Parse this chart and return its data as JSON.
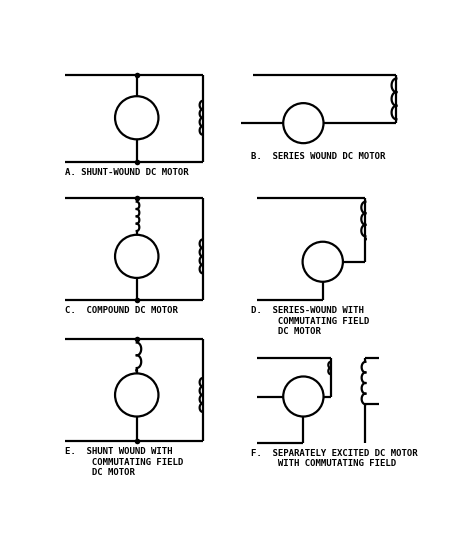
{
  "bg_color": "#ffffff",
  "line_color": "#1a1a1a",
  "lw": 1.6,
  "dot_size": 4,
  "labels": {
    "A": "A. SHUNT-WOUND DC MOTOR",
    "B": "B.  SERIES WOUND DC MOTOR",
    "C": "C.  COMPOUND DC MOTOR",
    "D": "D.  SERIES-WOUND WITH\n     COMMUTATING FIELD\n     DC MOTOR",
    "E": "E.  SHUNT WOUND WITH\n     COMMUTATING FIELD\n     DC MOTOR",
    "F": "F.  SEPARATELY EXCITED DC MOTOR\n     WITH COMMUTATING FIELD"
  },
  "font_size": 6.5
}
